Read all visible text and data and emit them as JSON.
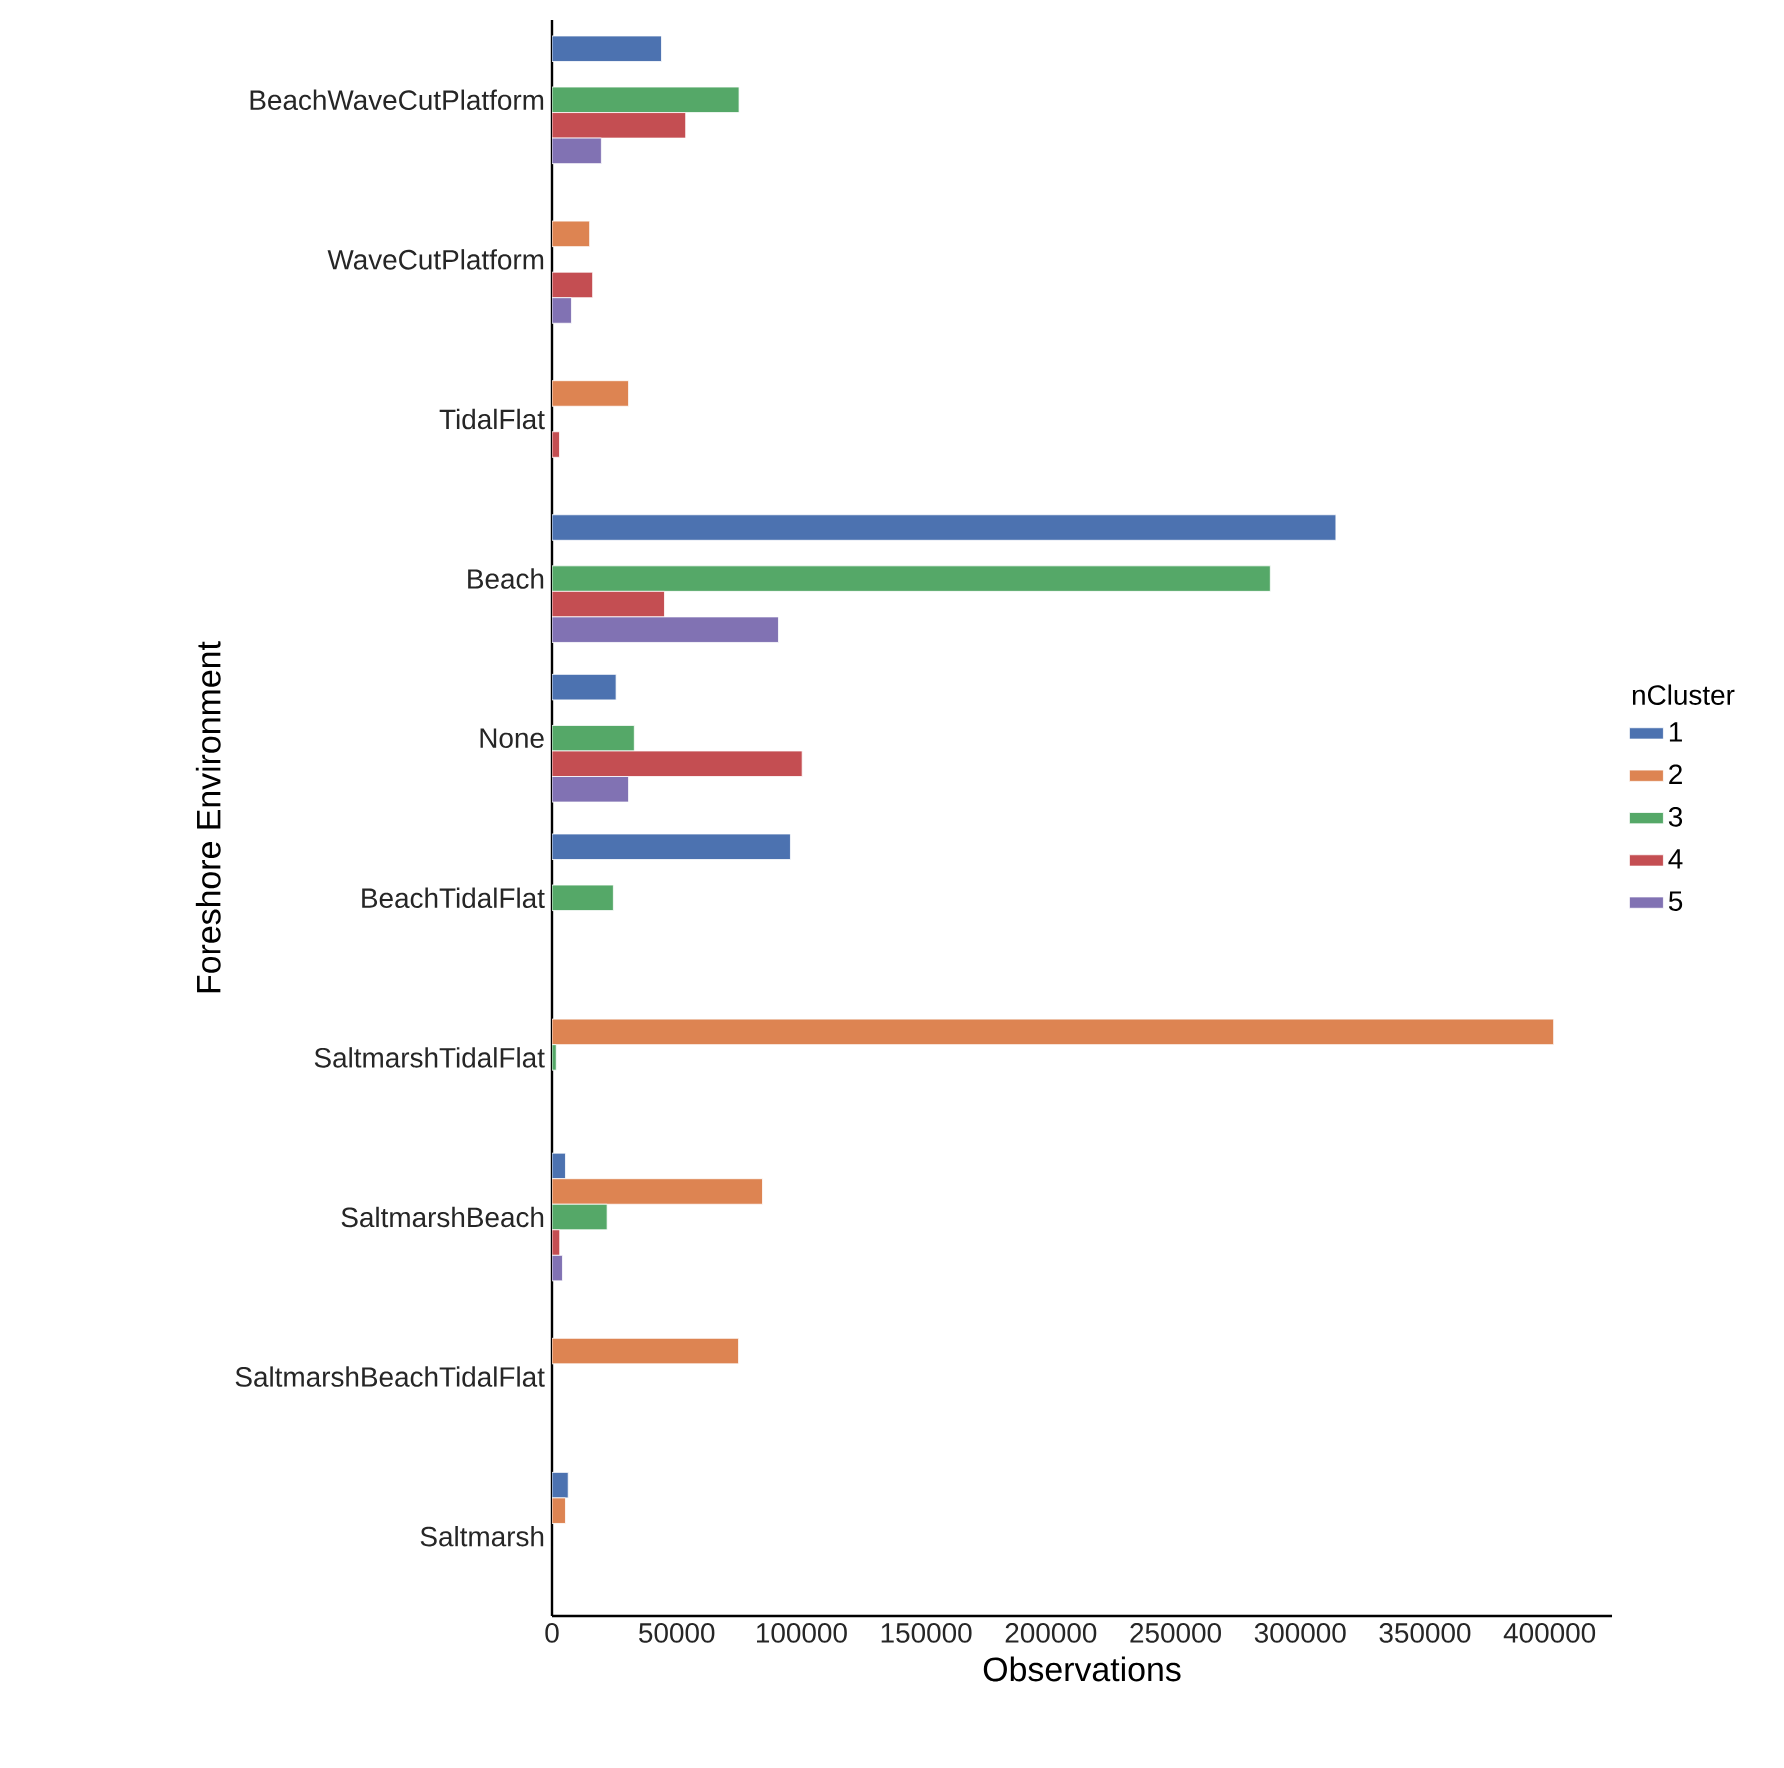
{
  "chart_data": {
    "type": "bar",
    "orientation": "horizontal",
    "xlabel": "Observations",
    "ylabel": "Foreshore Environment",
    "legend_title": "nCluster",
    "legend": "right",
    "categories": [
      "BeachWaveCutPlatform",
      "WaveCutPlatform",
      "TidalFlat",
      "Beach",
      "None",
      "BeachTidalFlat",
      "SaltmarshTidalFlat",
      "SaltmarshBeach",
      "SaltmarshBeachTidalFlat",
      "Saltmarsh"
    ],
    "series": [
      {
        "name": "1",
        "color": "#4c72b0",
        "values": [
          43900,
          null,
          null,
          314300,
          25700,
          95600,
          null,
          5400,
          null,
          6500
        ]
      },
      {
        "name": "2",
        "color": "#dd8452",
        "values": [
          null,
          15100,
          30700,
          null,
          null,
          null,
          401600,
          84400,
          74800,
          5400
        ]
      },
      {
        "name": "3",
        "color": "#55a868",
        "values": [
          75000,
          null,
          null,
          288000,
          33000,
          24600,
          1700,
          22100,
          null,
          null
        ]
      },
      {
        "name": "4",
        "color": "#c44e52",
        "values": [
          53600,
          16300,
          3000,
          45100,
          100300,
          null,
          null,
          3100,
          null,
          null
        ]
      },
      {
        "name": "5",
        "color": "#8172b3",
        "values": [
          19800,
          7800,
          null,
          90800,
          30700,
          null,
          null,
          4200,
          null,
          null
        ]
      }
    ],
    "xlim": [
      0,
      425000
    ],
    "xticks": [
      0,
      50000,
      100000,
      150000,
      200000,
      250000,
      300000,
      350000,
      400000
    ],
    "grid": false
  }
}
